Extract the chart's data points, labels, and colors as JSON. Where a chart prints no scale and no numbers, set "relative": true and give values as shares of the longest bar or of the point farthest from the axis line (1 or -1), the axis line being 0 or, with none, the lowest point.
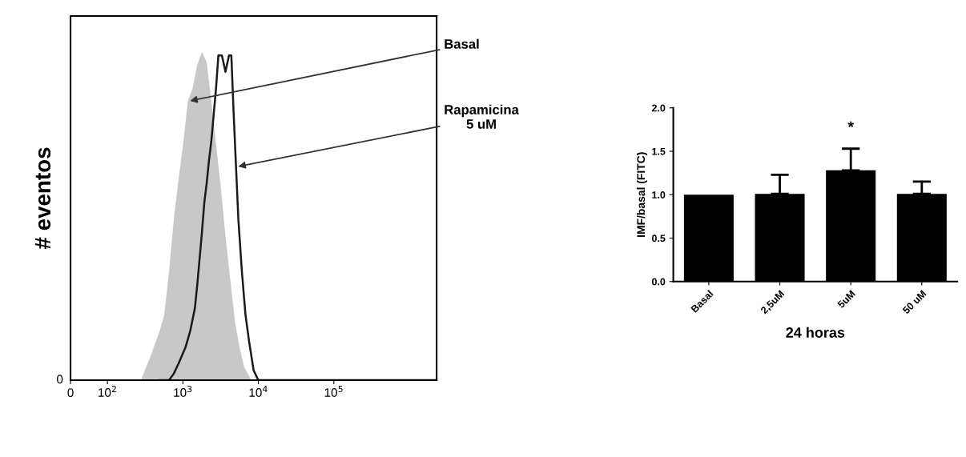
{
  "chart_data": [
    {
      "type": "area",
      "ylabel": "# eventos",
      "relative": true,
      "log": "x",
      "xlim": [
        0,
        2300000
      ],
      "xticks": [
        {
          "value": 0,
          "label": "0"
        },
        {
          "value": 100,
          "label": "10$^{2}$"
        },
        {
          "value": 1000,
          "label": "10$^{3}$"
        },
        {
          "value": 10000,
          "label": "10$^{4}$"
        },
        {
          "value": 100000,
          "label": "10$^{5}$"
        }
      ],
      "grid": false,
      "series": [
        {
          "name": "Basal",
          "type": "area",
          "color": "#c8c8c8",
          "x": [
            277,
            369,
            492,
            567,
            655,
            757,
            873,
            1006,
            1163,
            1343,
            1549,
            1787,
            2064,
            2383,
            2749,
            3174,
            3664,
            4227,
            4887,
            5623,
            6501,
            8070
          ],
          "values": [
            0,
            0.07,
            0.15,
            0.2,
            0.33,
            0.49,
            0.61,
            0.72,
            0.85,
            0.89,
            0.96,
            1,
            0.97,
            0.85,
            0.72,
            0.59,
            0.44,
            0.31,
            0.18,
            0.1,
            0.04,
            0
          ]
        },
        {
          "name": "Rapamicina\n5 uM",
          "type": "line",
          "color": "#1a1a1a",
          "x": [
            492,
            655,
            757,
            873,
            1082,
            1250,
            1443,
            1549,
            1664,
            1787,
            1920,
            2064,
            2218,
            2383,
            2560,
            2749,
            2954,
            3289,
            3664,
            4083,
            4385,
            4710,
            5057,
            5433,
            6053,
            6745,
            7516,
            8650,
            10000,
            2300000
          ],
          "values": [
            0,
            0,
            0.02,
            0.05,
            0.1,
            0.15,
            0.22,
            0.29,
            0.37,
            0.45,
            0.54,
            0.6,
            0.67,
            0.73,
            0.81,
            0.89,
            0.99,
            0.99,
            0.94,
            0.99,
            0.99,
            0.81,
            0.65,
            0.49,
            0.33,
            0.2,
            0.12,
            0.03,
            0,
            0
          ]
        }
      ],
      "annotations": [
        "0"
      ]
    },
    {
      "type": "bar",
      "categories": [
        "Basal",
        "2,5uM",
        "5uM",
        "50 uM"
      ],
      "values": [
        1.0,
        1.01,
        1.28,
        1.01
      ],
      "color": "#000000",
      "errors": [
        null,
        [
          1.01,
          1.23
        ],
        [
          1.28,
          1.53
        ],
        [
          1.01,
          1.15
        ]
      ],
      "ylim": [
        0,
        2.0
      ],
      "yticks": [
        {
          "value": 0,
          "label": "0.0"
        },
        0.5,
        {
          "value": 1,
          "label": "1.0"
        },
        1.5,
        {
          "value": 2,
          "label": "2.0"
        }
      ],
      "ylabel": "IMF/basal (FITC)",
      "xlabel": "24 horas",
      "grid": false,
      "annotations": [
        "*"
      ]
    }
  ]
}
